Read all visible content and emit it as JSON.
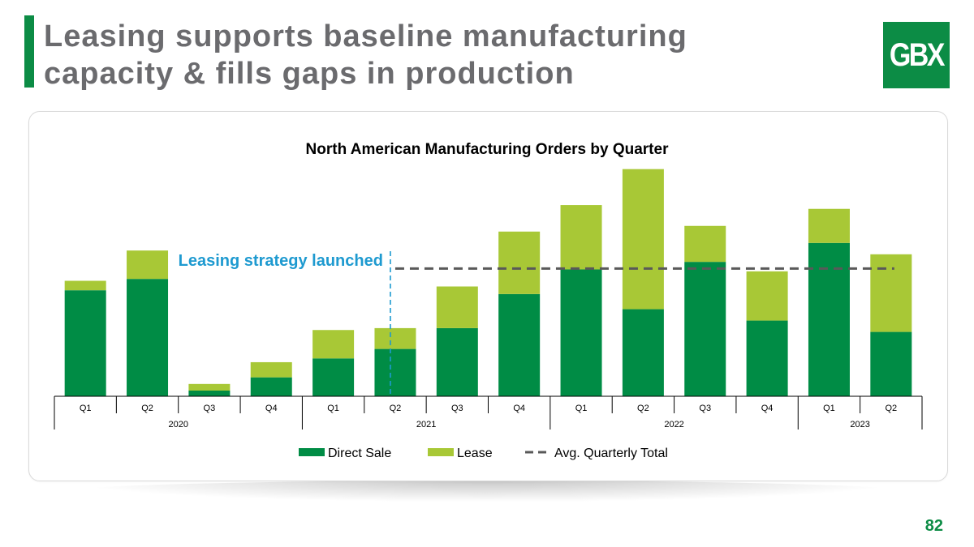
{
  "slide": {
    "title_line1": "Leasing supports baseline manufacturing",
    "title_line2": "capacity & fills gaps in production",
    "logo_text": "GBX",
    "page_number": "82"
  },
  "colors": {
    "brand_green": "#0c8c45",
    "direct_sale": "#008c45",
    "lease": "#a8c836",
    "title_gray": "#6b6b6e",
    "annotation_blue": "#1e9ad0",
    "avg_line": "#595959"
  },
  "chart_data": {
    "type": "bar",
    "stacked": true,
    "title": "North American Manufacturing Orders by Quarter",
    "categories": [
      "Q1",
      "Q2",
      "Q3",
      "Q4",
      "Q1",
      "Q2",
      "Q3",
      "Q4",
      "Q1",
      "Q2",
      "Q3",
      "Q4",
      "Q1",
      "Q2"
    ],
    "groups": [
      {
        "label": "2020",
        "count": 4
      },
      {
        "label": "2021",
        "count": 4
      },
      {
        "label": "2022",
        "count": 4
      },
      {
        "label": "2023",
        "count": 2
      }
    ],
    "series": [
      {
        "name": "Direct Sale",
        "values": [
          5.6,
          6.2,
          0.3,
          1.0,
          2.0,
          2.5,
          3.6,
          5.4,
          6.7,
          4.6,
          7.1,
          4.0,
          8.1,
          3.4
        ]
      },
      {
        "name": "Lease",
        "values": [
          0.5,
          1.5,
          0.35,
          0.8,
          1.5,
          1.1,
          2.2,
          3.3,
          3.4,
          7.4,
          1.9,
          2.6,
          1.8,
          4.1
        ]
      }
    ],
    "avg_line": {
      "name": "Avg. Quarterly Total",
      "value": 6.75,
      "start_index": 5,
      "end_index": 13
    },
    "annotation": {
      "text": "Leasing strategy launched",
      "at_index": 5
    },
    "legend": [
      "Direct Sale",
      "Lease",
      "Avg. Quarterly Total"
    ],
    "ylim": [
      0,
      12.5
    ],
    "xlabel": "",
    "ylabel": ""
  }
}
